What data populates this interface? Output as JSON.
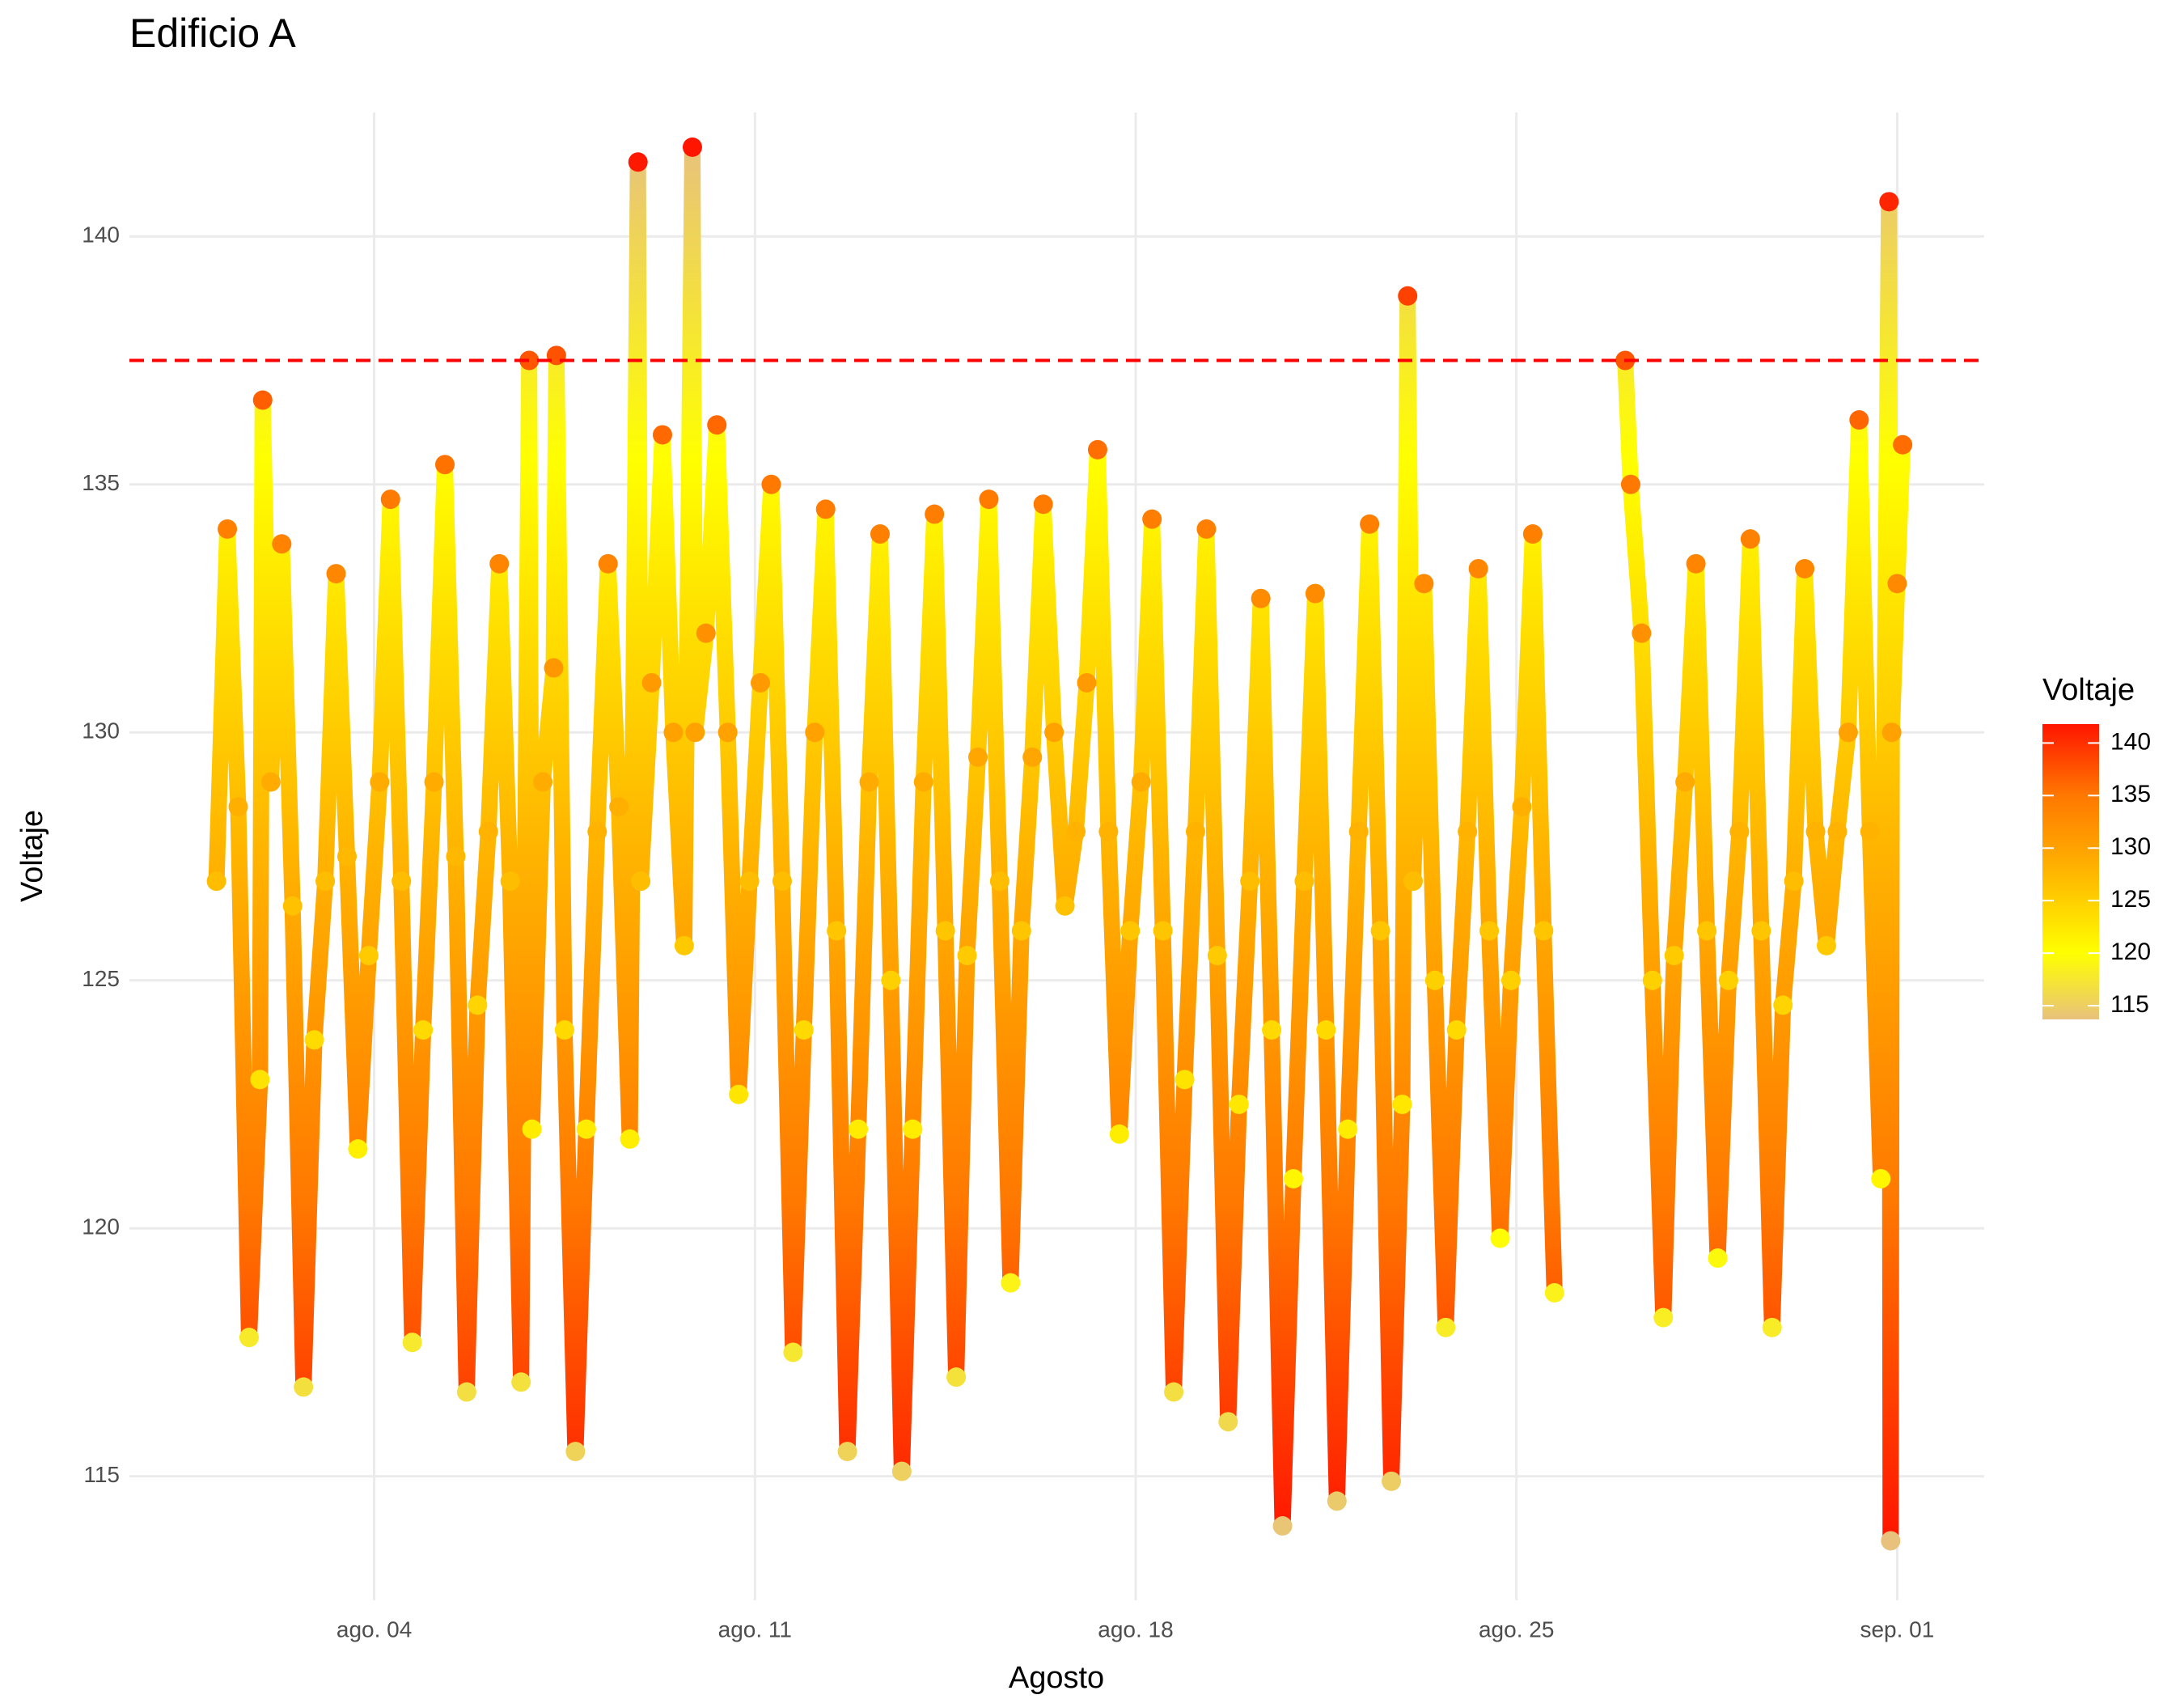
{
  "chart_data": {
    "type": "scatter",
    "title": "Edificio A",
    "x_label": "Agosto",
    "y_label": "Voltaje",
    "x": [
      1.1,
      1.3,
      1.5,
      1.7,
      1.9,
      1.95,
      2.1,
      2.3,
      2.5,
      2.7,
      2.9,
      3.1,
      3.3,
      3.5,
      3.7,
      3.9,
      4.1,
      4.3,
      4.5,
      4.7,
      4.9,
      5.1,
      5.3,
      5.5,
      5.7,
      5.9,
      6.1,
      6.3,
      6.5,
      6.7,
      6.85,
      6.9,
      7.1,
      7.3,
      7.35,
      7.5,
      7.7,
      7.9,
      8.1,
      8.3,
      8.5,
      8.7,
      8.85,
      8.9,
      9.1,
      9.3,
      9.5,
      9.7,
      9.85,
      9.9,
      10.1,
      10.3,
      10.5,
      10.7,
      10.9,
      11.1,
      11.3,
      11.5,
      11.7,
      11.9,
      12.1,
      12.3,
      12.5,
      12.7,
      12.9,
      13.1,
      13.3,
      13.5,
      13.7,
      13.9,
      14.1,
      14.3,
      14.5,
      14.7,
      14.9,
      15.1,
      15.3,
      15.5,
      15.7,
      15.9,
      16.1,
      16.3,
      16.5,
      16.7,
      16.9,
      17.1,
      17.3,
      17.5,
      17.7,
      17.9,
      18.1,
      18.3,
      18.5,
      18.7,
      18.9,
      19.1,
      19.3,
      19.5,
      19.7,
      19.9,
      20.1,
      20.3,
      20.5,
      20.7,
      20.9,
      21.1,
      21.3,
      21.5,
      21.7,
      21.9,
      22.1,
      22.3,
      22.5,
      22.7,
      22.9,
      23.0,
      23.1,
      23.3,
      23.5,
      23.7,
      23.9,
      24.1,
      24.3,
      24.5,
      24.7,
      24.9,
      25.1,
      25.3,
      25.5,
      25.7,
      26.3,
      27.0,
      27.1,
      27.3,
      27.5,
      27.7,
      27.9,
      28.1,
      28.3,
      28.5,
      28.7,
      28.9,
      29.1,
      29.3,
      29.5,
      29.7,
      29.9,
      30.1,
      30.3,
      30.5,
      30.7,
      30.9,
      31.1,
      31.3,
      31.5,
      31.7,
      31.85,
      31.88,
      31.9,
      32.0,
      32.1
    ],
    "values": [
      127,
      134.1,
      128.5,
      117.8,
      123,
      136.7,
      129,
      133.8,
      126.5,
      116.8,
      123.8,
      127,
      133.2,
      127.5,
      121.6,
      125.5,
      129,
      134.7,
      127,
      117.7,
      124,
      129,
      135.4,
      127.5,
      116.7,
      124.5,
      128,
      133.4,
      127,
      116.9,
      137.5,
      122,
      129,
      131.3,
      137.6,
      124,
      115.5,
      122,
      128,
      133.4,
      128.5,
      121.8,
      141.5,
      127,
      131,
      136,
      130,
      125.7,
      141.8,
      130,
      132,
      136.2,
      130,
      122.7,
      127,
      131,
      135,
      127,
      117.5,
      124,
      130,
      134.5,
      126,
      115.5,
      122,
      129,
      134,
      125,
      115.1,
      122,
      129,
      134.4,
      126,
      117,
      125.5,
      129.5,
      134.7,
      127,
      118.9,
      126,
      129.5,
      134.6,
      130,
      126.5,
      128,
      131,
      135.7,
      128,
      121.9,
      126,
      129,
      134.3,
      126,
      116.7,
      123,
      128,
      134.1,
      125.5,
      116.1,
      122.5,
      127,
      132.7,
      124,
      114,
      121,
      127,
      132.8,
      124,
      114.5,
      122,
      128,
      134.2,
      126,
      114.9,
      122.5,
      138.8,
      127,
      133,
      125,
      118,
      124,
      128,
      133.3,
      126,
      119.8,
      125,
      128.5,
      134,
      126,
      118.7,
      null,
      137.5,
      135,
      132,
      125,
      118.2,
      125.5,
      129,
      133.4,
      126,
      119.4,
      125,
      128,
      133.9,
      126,
      118,
      124.5,
      127,
      133.3,
      128,
      125.7,
      128,
      130,
      136.3,
      128,
      121,
      140.7,
      113.7,
      130,
      133,
      135.8
    ],
    "xlim": [
      -0.5,
      33.6
    ],
    "xticks": [
      {
        "value": 4,
        "label": "ago. 04"
      },
      {
        "value": 11,
        "label": "ago. 11"
      },
      {
        "value": 18,
        "label": "ago. 18"
      },
      {
        "value": 25,
        "label": "ago. 25"
      },
      {
        "value": 32,
        "label": "sep. 01"
      }
    ],
    "ylim": [
      112.5,
      142.5
    ],
    "yticks": [
      115,
      120,
      125,
      130,
      135,
      140
    ],
    "grid": true,
    "reference_line": {
      "value": 137.5,
      "color": "#ff0000"
    },
    "color_title": "Voltaje",
    "color_limits": [
      113.7,
      141.8
    ],
    "color_ticks": [
      115,
      120,
      125,
      130,
      135,
      140
    ],
    "color_stops": [
      {
        "value": 113.7,
        "color": "#e8c27c"
      },
      {
        "value": 120,
        "color": "#ffff00"
      },
      {
        "value": 128,
        "color": "#ffb300"
      },
      {
        "value": 135,
        "color": "#ff7800"
      },
      {
        "value": 141.8,
        "color": "#ff1500"
      }
    ]
  }
}
